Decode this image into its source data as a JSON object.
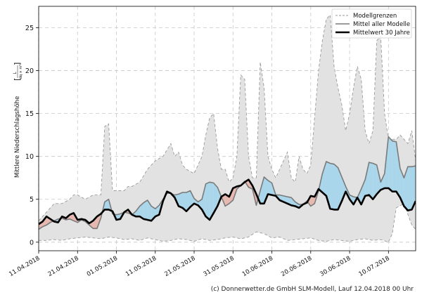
{
  "chart_data": {
    "type": "line",
    "ylabel": "Mittlere Niederschlagshöhe",
    "ylabel_unit_num": "L",
    "ylabel_unit_den": "dq × m²",
    "ylim": [
      -1,
      27.5
    ],
    "yticks": [
      0,
      5,
      10,
      15,
      20,
      25
    ],
    "x_range_days": [
      0,
      97
    ],
    "xticks": [
      {
        "day": 0,
        "label": "11.04.2018"
      },
      {
        "day": 10,
        "label": "21.04.2018"
      },
      {
        "day": 20,
        "label": "01.05.2018"
      },
      {
        "day": 30,
        "label": "11.05.2018"
      },
      {
        "day": 40,
        "label": "21.05.2018"
      },
      {
        "day": 50,
        "label": "31.05.2018"
      },
      {
        "day": 60,
        "label": "10.06.2018"
      },
      {
        "day": 70,
        "label": "20.06.2018"
      },
      {
        "day": 80,
        "label": "30.06.2018"
      },
      {
        "day": 90,
        "label": "10.07.2018"
      }
    ],
    "grid": true,
    "legend": {
      "position": "top-right",
      "entries": [
        "Modellgrenzen",
        "Mittel aller Modelle",
        "Mittelwert 30 Jahre"
      ]
    },
    "series": [
      {
        "name": "Modellgrenzen (Maximum)",
        "x": [
          0,
          2,
          4,
          6,
          8,
          9,
          10,
          12,
          14,
          16,
          17,
          18,
          19,
          20,
          21,
          22,
          23,
          24,
          26,
          28,
          30,
          32,
          34,
          35,
          36,
          37,
          38,
          40,
          42,
          43,
          44,
          45,
          46,
          47,
          48,
          49,
          50,
          51,
          52,
          53,
          54,
          55,
          56,
          57,
          58,
          59,
          60,
          61,
          62,
          63,
          64,
          65,
          66,
          67,
          68,
          69,
          70,
          71,
          72,
          73,
          74,
          75,
          76,
          77,
          78,
          79,
          80,
          81,
          82,
          83,
          84,
          85,
          86,
          87,
          88,
          89,
          90,
          91,
          92,
          93,
          94,
          95,
          96,
          97
        ],
        "values": [
          2.5,
          3.5,
          4.5,
          4.5,
          5.0,
          5.5,
          5.5,
          5.0,
          5.5,
          5.5,
          13.5,
          13.8,
          6.0,
          6.0,
          6.0,
          6.0,
          6.5,
          6.5,
          7.0,
          8.5,
          9.5,
          10.0,
          11.5,
          10.0,
          10.5,
          9.0,
          8.5,
          8.0,
          10.0,
          12.5,
          14.5,
          15.0,
          11.0,
          8.5,
          8.5,
          7.0,
          7.5,
          10.0,
          19.5,
          19.0,
          10.0,
          7.5,
          7.5,
          21.0,
          18.0,
          10.0,
          8.5,
          7.5,
          8.5,
          9.5,
          10.5,
          7.5,
          7.0,
          10.0,
          8.5,
          8.0,
          9.0,
          14.5,
          20.0,
          23.5,
          26.0,
          26.5,
          20.5,
          18.0,
          16.0,
          13.0,
          15.0,
          18.0,
          20.5,
          19.0,
          13.0,
          11.5,
          13.0,
          23.5,
          24.0,
          15.0,
          12.0,
          12.0,
          12.0,
          12.5,
          12.0,
          11.5,
          13.0,
          9.5
        ]
      },
      {
        "name": "Modellgrenzen (Minimum)",
        "x": [
          0,
          2,
          4,
          6,
          8,
          10,
          12,
          14,
          16,
          18,
          20,
          22,
          24,
          26,
          28,
          30,
          32,
          34,
          36,
          38,
          40,
          42,
          44,
          46,
          48,
          50,
          52,
          54,
          56,
          58,
          60,
          62,
          64,
          66,
          68,
          70,
          72,
          74,
          76,
          78,
          80,
          82,
          84,
          86,
          88,
          90,
          91,
          92,
          94,
          96,
          97
        ],
        "values": [
          0.2,
          0.2,
          0.3,
          0.2,
          0.4,
          0.5,
          0.6,
          0.5,
          0.4,
          0.6,
          0.5,
          0.3,
          0.4,
          0.2,
          0.5,
          0.3,
          0.1,
          0.2,
          0.4,
          0.3,
          0.1,
          0.4,
          0.2,
          0.3,
          0.5,
          0.6,
          0.4,
          0.6,
          1.2,
          1.0,
          0.5,
          0.6,
          0.2,
          0.3,
          0.4,
          0.5,
          0.2,
          0.1,
          0.3,
          0.2,
          0.1,
          0.3,
          0.4,
          0.2,
          0.3,
          0.0,
          1.0,
          4.0,
          4.5,
          2.0,
          1.5
        ]
      },
      {
        "name": "Mittel aller Modelle",
        "x": [
          0,
          1,
          2,
          3,
          4,
          5,
          6,
          7,
          8,
          9,
          10,
          11,
          12,
          13,
          14,
          15,
          16,
          17,
          18,
          19,
          20,
          21,
          22,
          23,
          24,
          25,
          26,
          27,
          28,
          29,
          30,
          31,
          32,
          33,
          34,
          35,
          36,
          37,
          38,
          39,
          40,
          41,
          42,
          43,
          44,
          45,
          46,
          47,
          48,
          49,
          50,
          51,
          52,
          53,
          54,
          55,
          56,
          57,
          58,
          59,
          60,
          61,
          62,
          63,
          64,
          65,
          66,
          67,
          68,
          69,
          70,
          71,
          72,
          73,
          74,
          75,
          76,
          77,
          78,
          79,
          80,
          81,
          82,
          83,
          84,
          85,
          86,
          87,
          88,
          89,
          90,
          91,
          92,
          93,
          94,
          95,
          96,
          97
        ],
        "values": [
          1.5,
          1.8,
          2.0,
          2.3,
          2.5,
          2.7,
          2.8,
          2.6,
          2.7,
          2.5,
          2.3,
          2.6,
          2.4,
          2.0,
          1.6,
          1.6,
          2.8,
          4.7,
          5.0,
          3.3,
          3.2,
          3.3,
          3.5,
          3.4,
          3.2,
          3.6,
          4.2,
          4.6,
          4.9,
          4.2,
          3.9,
          4.3,
          5.0,
          5.7,
          5.7,
          5.5,
          5.6,
          5.8,
          5.8,
          6.0,
          5.1,
          4.7,
          5.0,
          6.8,
          7.0,
          6.9,
          6.4,
          5.3,
          4.2,
          4.5,
          4.9,
          6.2,
          6.6,
          7.1,
          6.4,
          6.2,
          4.3,
          6.0,
          7.6,
          7.2,
          6.9,
          5.5,
          5.5,
          5.4,
          5.3,
          5.2,
          4.7,
          4.4,
          4.4,
          4.8,
          4.2,
          4.5,
          6.0,
          8.0,
          9.4,
          9.2,
          9.1,
          8.7,
          7.6,
          6.5,
          5.5,
          5.3,
          5.2,
          6.2,
          7.3,
          9.3,
          9.2,
          9.0,
          7.0,
          8.0,
          12.3,
          11.8,
          11.7,
          8.6,
          7.5,
          8.8,
          8.8,
          8.9
        ]
      },
      {
        "name": "Mittelwert 30 Jahre",
        "x": [
          0,
          1,
          2,
          3,
          4,
          5,
          6,
          7,
          8,
          9,
          10,
          11,
          12,
          13,
          14,
          15,
          16,
          17,
          18,
          19,
          20,
          21,
          22,
          23,
          24,
          25,
          26,
          27,
          28,
          29,
          30,
          31,
          32,
          33,
          34,
          35,
          36,
          37,
          38,
          39,
          40,
          41,
          42,
          43,
          44,
          45,
          46,
          47,
          48,
          49,
          50,
          51,
          52,
          53,
          54,
          55,
          56,
          57,
          58,
          59,
          60,
          61,
          62,
          63,
          64,
          65,
          66,
          67,
          68,
          69,
          70,
          71,
          72,
          73,
          74,
          75,
          76,
          77,
          78,
          79,
          80,
          81,
          82,
          83,
          84,
          85,
          86,
          87,
          88,
          89,
          90,
          91,
          92,
          93,
          94,
          95,
          96,
          97
        ],
        "values": [
          2.1,
          2.4,
          3.0,
          2.7,
          2.4,
          2.3,
          3.0,
          2.8,
          3.2,
          3.4,
          2.6,
          2.7,
          2.6,
          2.2,
          2.5,
          3.0,
          3.3,
          3.8,
          3.8,
          3.6,
          2.6,
          2.7,
          3.5,
          3.8,
          3.2,
          3.0,
          3.0,
          2.7,
          2.6,
          2.5,
          3.0,
          3.2,
          4.8,
          5.9,
          5.7,
          5.2,
          4.2,
          4.0,
          3.6,
          4.1,
          4.5,
          4.3,
          3.8,
          3.0,
          2.6,
          3.4,
          4.2,
          5.3,
          5.6,
          5.3,
          6.3,
          6.5,
          6.6,
          7.0,
          7.3,
          6.6,
          5.6,
          4.5,
          4.5,
          5.6,
          5.5,
          5.4,
          4.9,
          4.7,
          4.5,
          4.3,
          4.2,
          4.0,
          4.4,
          4.6,
          5.4,
          5.3,
          6.2,
          5.8,
          5.4,
          3.9,
          3.8,
          3.8,
          4.8,
          5.9,
          5.0,
          4.4,
          5.2,
          4.4,
          5.4,
          5.5,
          5.0,
          5.6,
          6.1,
          6.3,
          6.3,
          5.9,
          5.9,
          5.2,
          4.2,
          3.7,
          3.8,
          4.8
        ]
      }
    ]
  },
  "footer": "(c) Donnerwetter.de GmbH SLM-Modell, Lauf 12.04.2018 00 Uhr",
  "colors": {
    "range_fill": "#e2e2e2",
    "range_edge": "#9a9a9a",
    "above_fill": "#a9d6ea",
    "below_fill": "#e6b8b0",
    "model_line": "#7a7a7a",
    "climate_line": "#000000",
    "grid": "#c8c8c8"
  }
}
